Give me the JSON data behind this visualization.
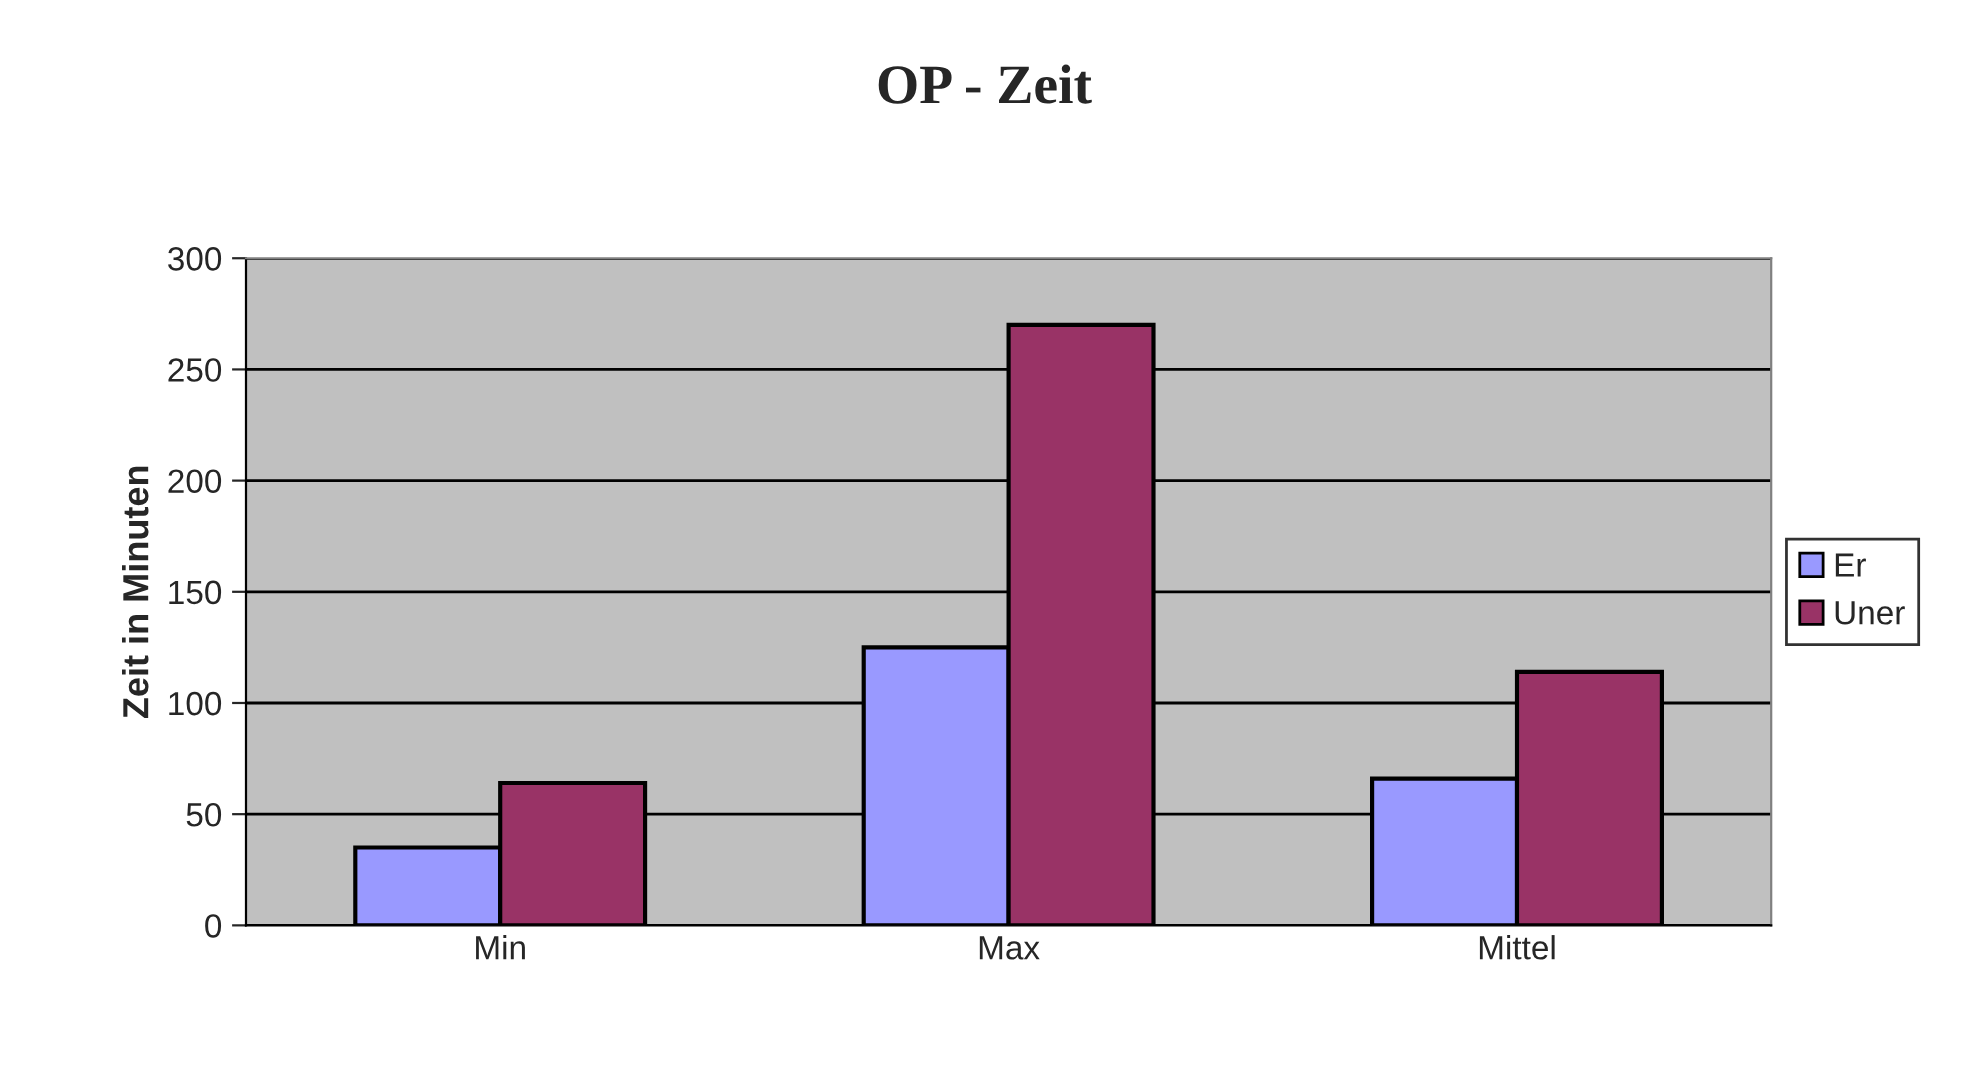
{
  "chart_data": {
    "type": "bar",
    "title": "OP - Zeit",
    "ylabel": "Zeit in Minuten",
    "categories": [
      "Min",
      "Max",
      "Mittel"
    ],
    "series": [
      {
        "name": "Er",
        "color": "#9999ff",
        "values": [
          35,
          125,
          66
        ]
      },
      {
        "name": "Uner",
        "color": "#993366",
        "values": [
          64,
          270,
          114
        ]
      }
    ],
    "ylim": [
      0,
      300
    ],
    "yticks": [
      0,
      50,
      100,
      150,
      200,
      250,
      300
    ],
    "grid": "y",
    "legend": "right"
  }
}
